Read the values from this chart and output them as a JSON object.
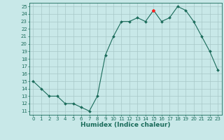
{
  "x": [
    0,
    1,
    2,
    3,
    4,
    5,
    6,
    7,
    8,
    9,
    10,
    11,
    12,
    13,
    14,
    15,
    16,
    17,
    18,
    19,
    20,
    21,
    22,
    23
  ],
  "y": [
    15,
    14,
    13,
    13,
    12,
    12,
    11.5,
    11,
    13,
    18.5,
    21,
    23,
    23,
    23.5,
    23,
    24.5,
    23,
    23.5,
    25,
    24.5,
    23,
    21,
    19,
    16.5
  ],
  "line_color": "#1a6b5a",
  "marker_color": "#1a6b5a",
  "bg_color": "#c8e8e8",
  "grid_color": "#a8c8c8",
  "xlabel": "Humidex (Indice chaleur)",
  "xlim": [
    -0.5,
    23.5
  ],
  "ylim": [
    10.5,
    25.5
  ],
  "yticks": [
    11,
    12,
    13,
    14,
    15,
    16,
    17,
    18,
    19,
    20,
    21,
    22,
    23,
    24,
    25
  ],
  "xticks": [
    0,
    1,
    2,
    3,
    4,
    5,
    6,
    7,
    8,
    9,
    10,
    11,
    12,
    13,
    14,
    15,
    16,
    17,
    18,
    19,
    20,
    21,
    22,
    23
  ],
  "tick_fontsize": 5.0,
  "label_fontsize": 6.5,
  "special_point_x": 15,
  "special_point_y": 24.5,
  "special_color": "#ff2222"
}
